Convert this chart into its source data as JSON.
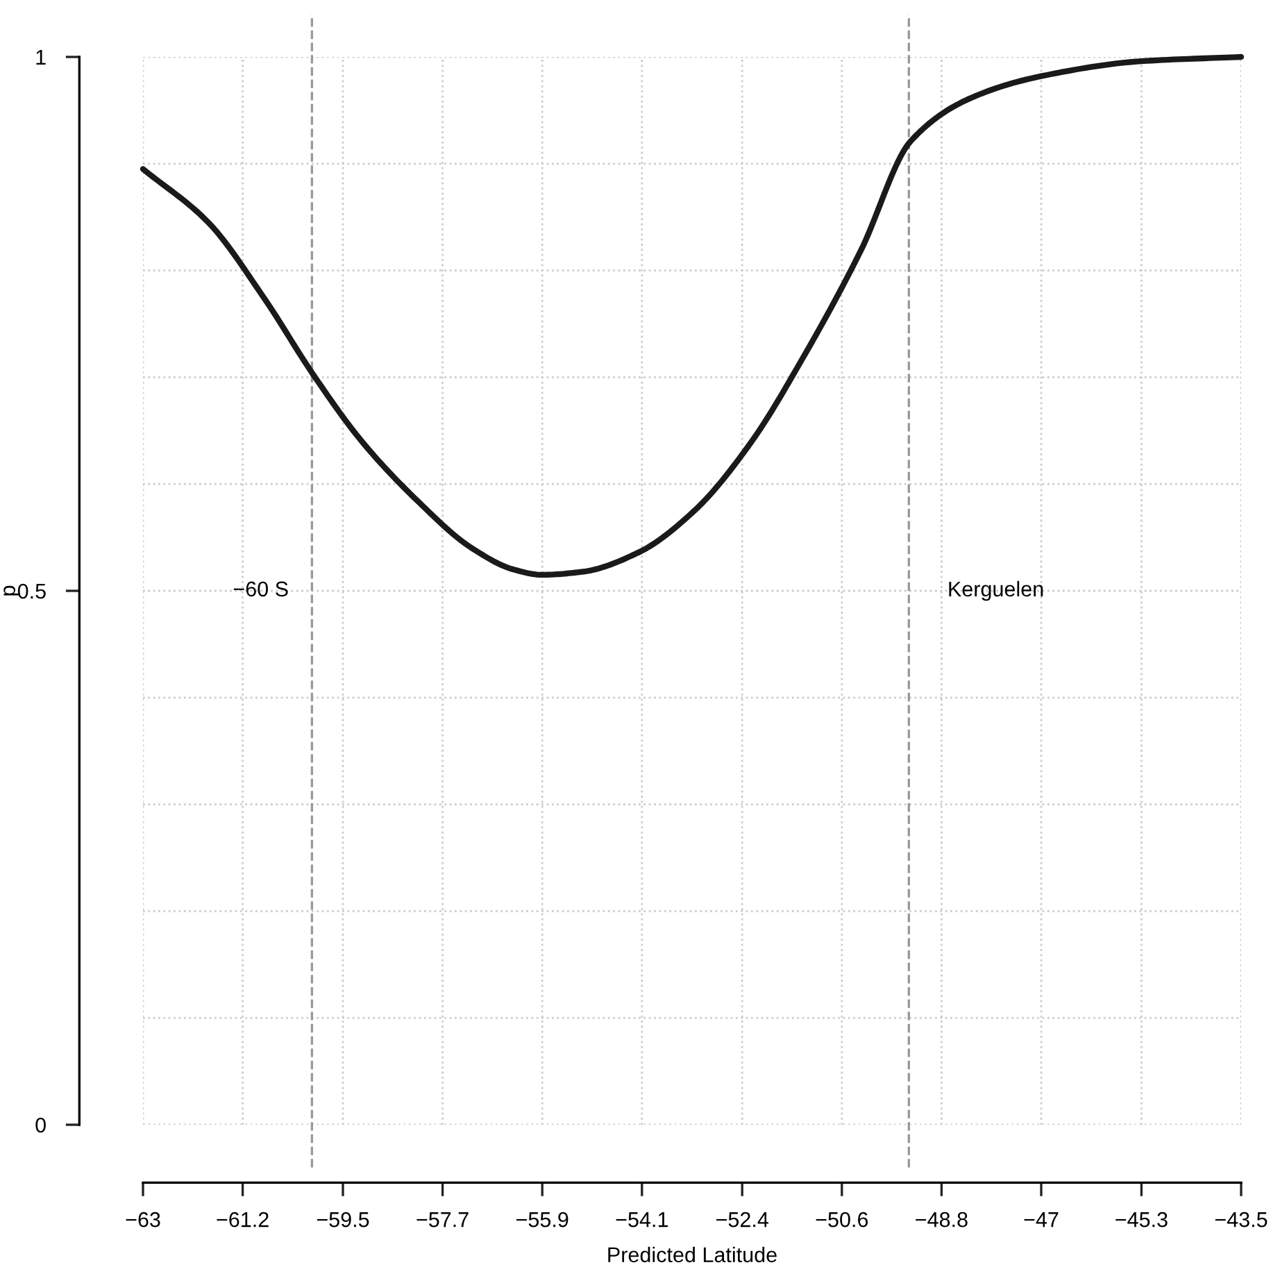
{
  "chart_data": {
    "type": "line",
    "xlabel": "Predicted Latitude",
    "ylabel": "p",
    "x": [
      -63,
      -61.84,
      -60.86,
      -59.97,
      -59.13,
      -58.14,
      -57.16,
      -56.42,
      -55.92,
      -55.18,
      -54.2,
      -53.21,
      -52.23,
      -51.24,
      -50.25,
      -49.37,
      -48.28,
      -47.05,
      -45.27,
      -43.5
    ],
    "series": [
      {
        "color": "#1a1a1a",
        "values": [
          0.895,
          0.845,
          0.775,
          0.702,
          0.641,
          0.585,
          0.54,
          0.52,
          0.515,
          0.518,
          0.536,
          0.575,
          0.637,
          0.722,
          0.819,
          0.921,
          0.962,
          0.982,
          0.996,
          1.0
        ]
      }
    ],
    "xlim": [
      -63,
      -43.5
    ],
    "xticks": [
      {
        "value": -63,
        "label": "−63"
      },
      {
        "value": -61.23,
        "label": "−61.2"
      },
      {
        "value": -59.45,
        "label": "−59.5"
      },
      {
        "value": -57.68,
        "label": "−57.7"
      },
      {
        "value": -55.91,
        "label": "−55.9"
      },
      {
        "value": -54.14,
        "label": "−54.1"
      },
      {
        "value": -52.36,
        "label": "−52.4"
      },
      {
        "value": -50.59,
        "label": "−50.6"
      },
      {
        "value": -48.82,
        "label": "−48.8"
      },
      {
        "value": -47.05,
        "label": "−47"
      },
      {
        "value": -45.27,
        "label": "−45.3"
      },
      {
        "value": -43.5,
        "label": "−43.5"
      }
    ],
    "ylim": [
      0,
      1
    ],
    "yticks": [
      0,
      {
        "value": 0.1,
        "label": null
      },
      {
        "value": 0.2,
        "label": null
      },
      {
        "value": 0.3,
        "label": null
      },
      {
        "value": 0.4,
        "label": null
      },
      0.5,
      {
        "value": 0.6,
        "label": null
      },
      {
        "value": 0.7,
        "label": null
      },
      {
        "value": 0.8,
        "label": null
      },
      {
        "value": 0.9,
        "label": null
      },
      1
    ],
    "grid": true,
    "line_style": "solid",
    "marker": "none",
    "ref_lines": [
      {
        "axis": "x",
        "value": -60,
        "label": "−60 S",
        "color": "#999999",
        "line_style": "dashed"
      },
      {
        "axis": "x",
        "value": -49.4,
        "label": "Kerguelen",
        "color": "#999999",
        "line_style": "dashed"
      }
    ]
  }
}
